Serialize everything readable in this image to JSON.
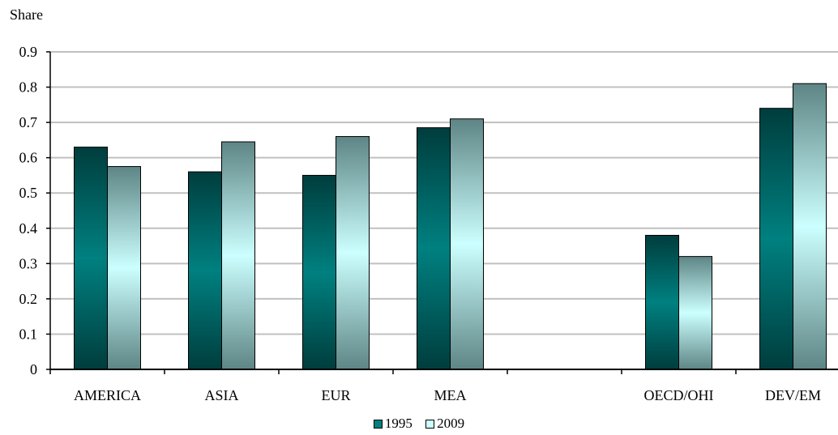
{
  "chart_data": {
    "type": "bar",
    "ylabel": "Share",
    "xlabel": "",
    "ylim": [
      0,
      0.9
    ],
    "yticks": [
      0,
      0.1,
      0.2,
      0.3,
      0.4,
      0.5,
      0.6,
      0.7,
      0.8,
      0.9
    ],
    "ytick_labels": [
      "0",
      "0.1",
      "0.2",
      "0.3",
      "0.4",
      "0.5",
      "0.6",
      "0.7",
      "0.8",
      "0.9"
    ],
    "categories": [
      "AMERICA",
      "ASIA",
      "EUR",
      "MEA",
      "",
      "OECD/OHI",
      "DEV/EM"
    ],
    "series": [
      {
        "name": "1995",
        "values": [
          0.63,
          0.56,
          0.55,
          0.685,
          null,
          0.38,
          0.74
        ]
      },
      {
        "name": "2009",
        "values": [
          0.575,
          0.645,
          0.66,
          0.71,
          null,
          0.32,
          0.81
        ]
      }
    ],
    "grid": true,
    "legend_position": "bottom",
    "colors": {
      "s1995_dark": "#003d3d",
      "s1995_light": "#008080",
      "s2009_dark": "#5e8585",
      "s2009_light": "#ccffff",
      "grid": "#c0c0c0"
    }
  }
}
